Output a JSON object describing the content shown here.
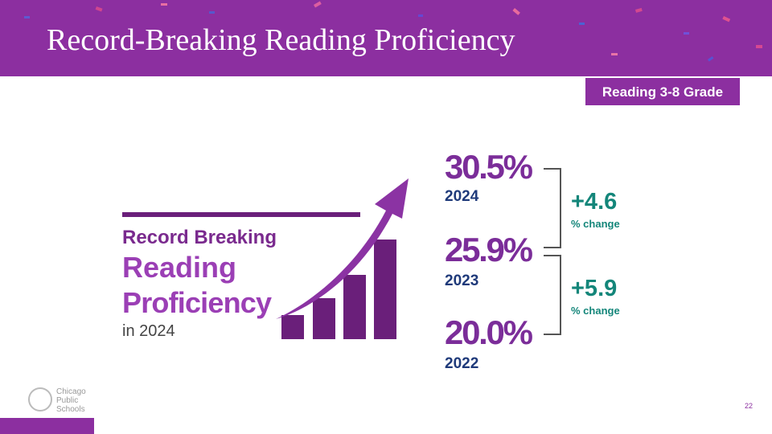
{
  "header": {
    "title": "Record-Breaking Reading Proficiency"
  },
  "badge": "Reading 3-8 Grade",
  "headline": {
    "line1": "Record Breaking",
    "line2": "Reading",
    "line3": "Proficiency",
    "line4": "in 2024"
  },
  "stats": [
    {
      "value": "30.5%",
      "year": "2024"
    },
    {
      "value": "25.9%",
      "year": "2023"
    },
    {
      "value": "20.0%",
      "year": "2022"
    }
  ],
  "changes": [
    {
      "value": "+4.6",
      "label": "% change"
    },
    {
      "value": "+5.9",
      "label": "% change"
    }
  ],
  "logo": {
    "line1": "Chicago",
    "line2": "Public",
    "line3": "Schools"
  },
  "page_number": "22"
}
